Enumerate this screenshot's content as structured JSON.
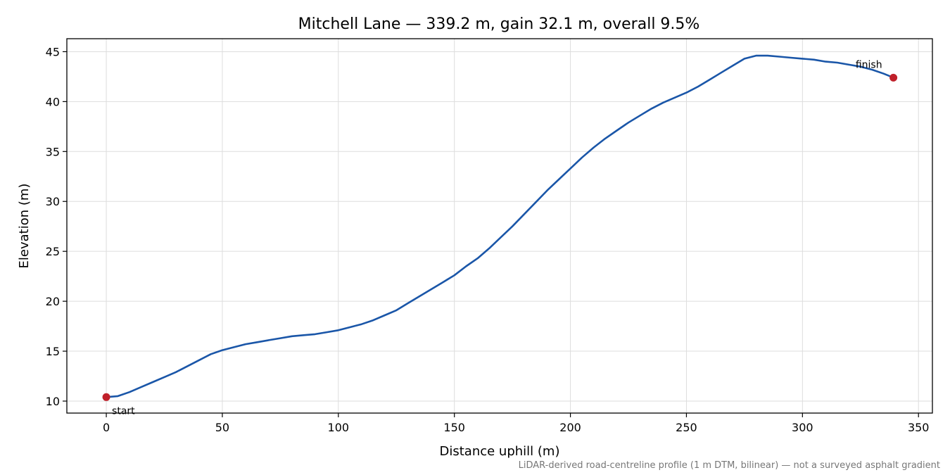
{
  "chart_data": {
    "type": "line",
    "title": "Mitchell Lane — 339.2 m, gain 32.1 m, overall 9.5%",
    "xlabel": "Distance uphill (m)",
    "ylabel": "Elevation (m)",
    "xlim": [
      -17,
      356
    ],
    "ylim": [
      8.8,
      46.3
    ],
    "xticks": [
      0,
      50,
      100,
      150,
      200,
      250,
      300,
      350
    ],
    "yticks": [
      10,
      15,
      20,
      25,
      30,
      35,
      40,
      45
    ],
    "grid": true,
    "line_color": "#1a56a8",
    "marker_color": "#c0202a",
    "series": [
      {
        "x": [
          0,
          5,
          10,
          15,
          20,
          25,
          30,
          35,
          40,
          45,
          50,
          55,
          60,
          65,
          70,
          75,
          80,
          85,
          90,
          95,
          100,
          105,
          110,
          115,
          120,
          125,
          130,
          135,
          140,
          145,
          150,
          155,
          160,
          165,
          170,
          175,
          180,
          185,
          190,
          195,
          200,
          205,
          210,
          215,
          220,
          225,
          230,
          235,
          240,
          245,
          250,
          255,
          260,
          265,
          270,
          275,
          280,
          285,
          290,
          295,
          300,
          305,
          310,
          315,
          320,
          325,
          330,
          335,
          339.2
        ],
        "y": [
          10.4,
          10.5,
          10.9,
          11.4,
          11.9,
          12.4,
          12.9,
          13.5,
          14.1,
          14.7,
          15.1,
          15.4,
          15.7,
          15.9,
          16.1,
          16.3,
          16.5,
          16.6,
          16.7,
          16.9,
          17.1,
          17.4,
          17.7,
          18.1,
          18.6,
          19.1,
          19.8,
          20.5,
          21.2,
          21.9,
          22.6,
          23.5,
          24.3,
          25.3,
          26.4,
          27.5,
          28.7,
          29.9,
          31.1,
          32.2,
          33.3,
          34.4,
          35.4,
          36.3,
          37.1,
          37.9,
          38.6,
          39.3,
          39.9,
          40.4,
          40.9,
          41.5,
          42.2,
          42.9,
          43.6,
          44.3,
          44.6,
          44.6,
          44.5,
          44.4,
          44.3,
          44.2,
          44.0,
          43.9,
          43.7,
          43.5,
          43.2,
          42.8,
          42.4
        ]
      }
    ],
    "annotations": [
      {
        "text": "start",
        "x": 0,
        "y": 10.4
      },
      {
        "text": "finish",
        "x": 339.2,
        "y": 42.4
      }
    ],
    "footnote": "LiDAR-derived road-centreline profile (1 m DTM, bilinear) — not a surveyed asphalt gradient"
  }
}
